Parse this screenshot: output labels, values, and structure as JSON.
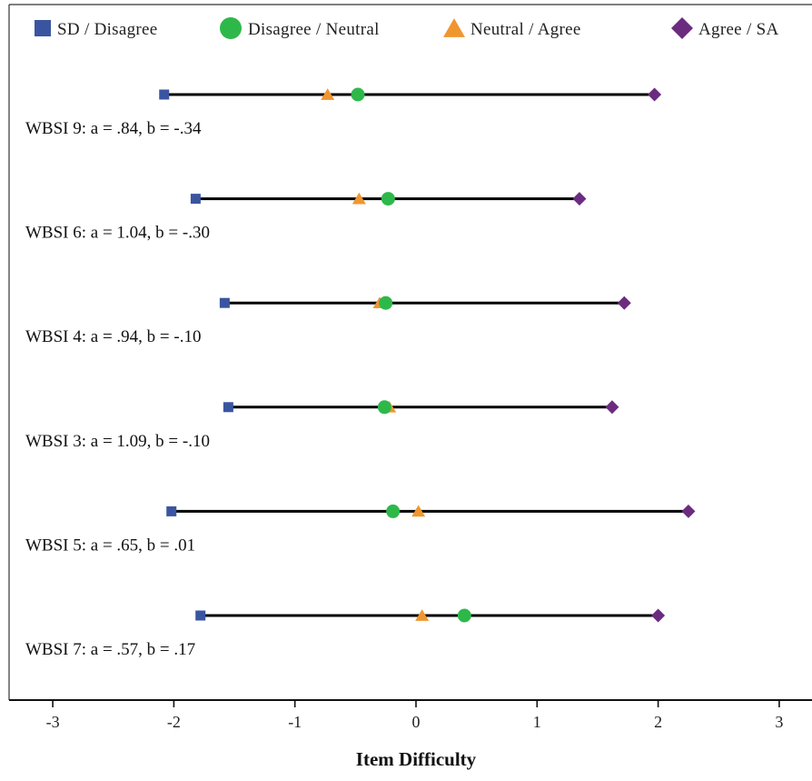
{
  "chart_data": {
    "type": "scatter",
    "xlabel": "Item Difficulty",
    "xlim": [
      -3,
      3
    ],
    "x_ticks": [
      "-3",
      "-2",
      "-1",
      "0",
      "1",
      "2",
      "3"
    ],
    "legend": {
      "placement": "top",
      "entries": [
        {
          "name": "SD / Disagree",
          "marker": "square",
          "color": "#3a55a0"
        },
        {
          "name": "Disagree / Neutral",
          "marker": "circle",
          "color": "#2eb84a"
        },
        {
          "name": "Neutral / Agree",
          "marker": "triangle",
          "color": "#f0962e"
        },
        {
          "name": "Agree / SA",
          "marker": "diamond",
          "color": "#6b2c80"
        }
      ]
    },
    "items": [
      {
        "label": "WBSI 9: a = .84, b = -.34",
        "values": [
          -2.08,
          -0.48,
          -0.73,
          1.97
        ]
      },
      {
        "label": "WBSI 6: a = 1.04, b = -.30",
        "values": [
          -1.82,
          -0.23,
          -0.47,
          1.35
        ]
      },
      {
        "label": "WBSI 4: a = .94, b = -.10",
        "values": [
          -1.58,
          -0.25,
          -0.3,
          1.72
        ]
      },
      {
        "label": "WBSI 3: a = 1.09, b = -.10",
        "values": [
          -1.55,
          -0.26,
          -0.22,
          1.62
        ]
      },
      {
        "label": "WBSI 5: a = .65, b = .01",
        "values": [
          -2.02,
          -0.19,
          0.02,
          2.25
        ]
      },
      {
        "label": "WBSI 7: a = .57, b = .17",
        "values": [
          -1.78,
          0.4,
          0.05,
          2.0
        ]
      }
    ],
    "line_color": "#000000",
    "grid": false
  }
}
